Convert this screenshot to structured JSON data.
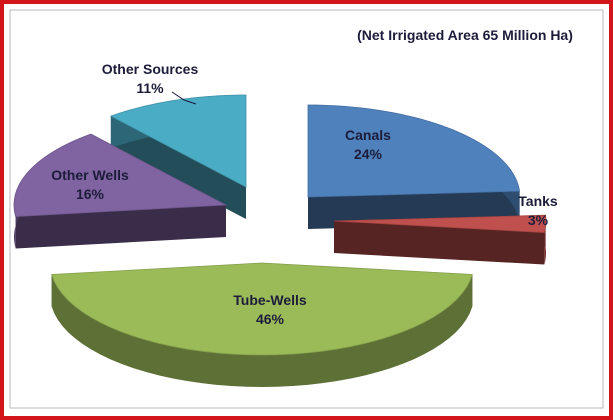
{
  "chart_data": {
    "type": "pie",
    "subtitle": "(Net Irrigated Area 65 Million Ha)",
    "slices": [
      {
        "label": "Canals",
        "value": 24,
        "value_text": "24%",
        "color": "#4f81bd"
      },
      {
        "label": "Tanks",
        "value": 3,
        "value_text": "3%",
        "color": "#c0504d"
      },
      {
        "label": "Tube-Wells",
        "value": 46,
        "value_text": "46%",
        "color": "#9bbb59"
      },
      {
        "label": "Other Wells",
        "value": 16,
        "value_text": "16%",
        "color": "#8064a2"
      },
      {
        "label": "Other Sources",
        "value": 11,
        "value_text": "11%",
        "color": "#4bacc6"
      }
    ],
    "style": "3d-exploded"
  },
  "colors": {
    "frame_border": "#d2151b",
    "background": "#ffffff",
    "text": "#1c1c3a"
  }
}
